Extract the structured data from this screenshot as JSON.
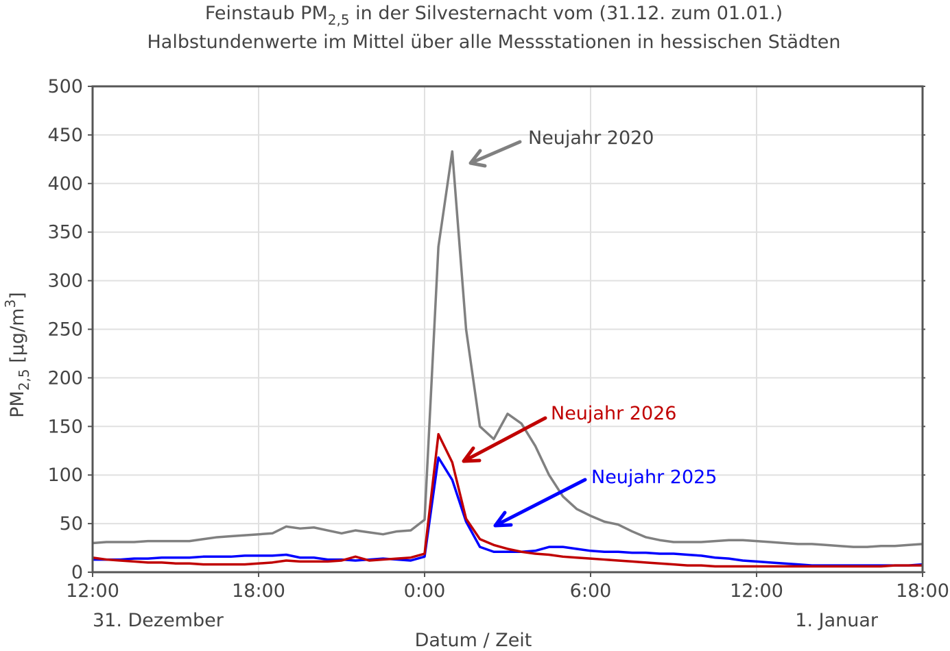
{
  "chart_data": {
    "type": "line",
    "title": [
      "Feinstaub PM",
      "2,5",
      " in der Silvesternacht vom (31.12. zum 01.01.)"
    ],
    "subtitle": "Halbstundenwerte im Mittel über alle Messstationen in hessischen Städten",
    "x_label": "Datum / Zeit",
    "y_label": [
      "PM",
      "2,5",
      " [µg/m",
      "3",
      "]"
    ],
    "date_labels": [
      "31. Dezember",
      "1. Januar"
    ],
    "x": [
      0,
      0.5,
      1,
      1.5,
      2,
      2.5,
      3,
      3.5,
      4,
      4.5,
      5,
      5.5,
      6,
      6.5,
      7,
      7.5,
      8,
      8.5,
      9,
      9.5,
      10,
      10.5,
      11,
      11.5,
      12,
      12.5,
      13,
      13.5,
      14,
      14.5,
      15,
      15.5,
      16,
      16.5,
      17,
      17.5,
      18,
      18.5,
      19,
      19.5,
      20,
      20.5,
      21,
      21.5,
      22,
      22.5,
      23,
      23.5,
      24,
      24.5,
      25,
      25.5,
      26,
      26.5,
      27,
      27.5,
      28,
      28.5,
      29,
      29.5,
      30
    ],
    "xlim": [
      0,
      30
    ],
    "xticks": [
      {
        "value": 0,
        "label": "12:00"
      },
      {
        "value": 6,
        "label": "18:00"
      },
      {
        "value": 12,
        "label": "0:00"
      },
      {
        "value": 18,
        "label": "6:00"
      },
      {
        "value": 24,
        "label": "12:00"
      },
      {
        "value": 30,
        "label": "18:00"
      }
    ],
    "ylim": [
      0,
      500
    ],
    "yticks": [
      0,
      50,
      100,
      150,
      200,
      250,
      300,
      350,
      400,
      450,
      500
    ],
    "grid": true,
    "series": [
      {
        "name": "Neujahr 2020",
        "color": "#808080",
        "values": [
          30,
          31,
          31,
          31,
          32,
          32,
          32,
          32,
          34,
          36,
          37,
          38,
          39,
          40,
          47,
          45,
          46,
          43,
          40,
          43,
          41,
          39,
          42,
          43,
          54,
          335,
          433,
          250,
          150,
          137,
          163,
          153,
          130,
          100,
          78,
          65,
          58,
          52,
          49,
          42,
          36,
          33,
          31,
          31,
          31,
          32,
          33,
          33,
          32,
          31,
          30,
          29,
          29,
          28,
          27,
          26,
          26,
          27,
          27,
          28,
          29
        ]
      },
      {
        "name": "Neujahr 2025",
        "color": "#0000ff",
        "values": [
          13,
          13,
          13,
          14,
          14,
          15,
          15,
          15,
          16,
          16,
          16,
          17,
          17,
          17,
          18,
          15,
          15,
          13,
          13,
          12,
          13,
          14,
          13,
          12,
          16,
          118,
          95,
          52,
          26,
          21,
          21,
          21,
          22,
          26,
          26,
          24,
          22,
          21,
          21,
          20,
          20,
          19,
          19,
          18,
          17,
          15,
          14,
          12,
          11,
          10,
          9,
          8,
          7,
          7,
          7,
          7,
          7,
          7,
          7,
          7,
          8
        ]
      },
      {
        "name": "Neujahr 2026",
        "color": "#c00000",
        "values": [
          15,
          13,
          12,
          11,
          10,
          10,
          9,
          9,
          8,
          8,
          8,
          8,
          9,
          10,
          12,
          11,
          11,
          11,
          12,
          16,
          12,
          13,
          14,
          15,
          19,
          142,
          113,
          55,
          34,
          28,
          24,
          21,
          19,
          18,
          16,
          15,
          14,
          13,
          12,
          11,
          10,
          9,
          8,
          7,
          7,
          6,
          6,
          6,
          6,
          6,
          6,
          6,
          6,
          6,
          6,
          6,
          6,
          6,
          7,
          7,
          7
        ]
      }
    ]
  }
}
